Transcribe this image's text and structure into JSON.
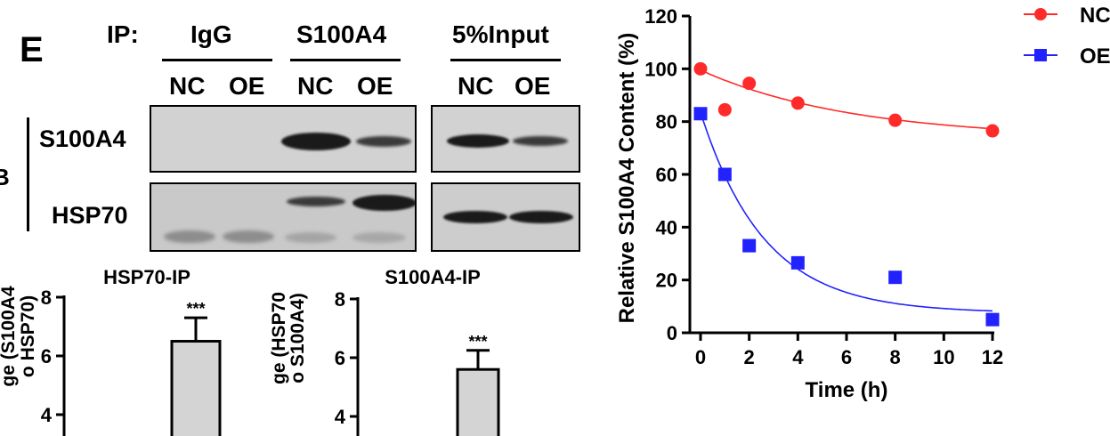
{
  "panel_label": "E",
  "ip": {
    "prefix": "IP:",
    "groups": [
      "IgG",
      "S100A4",
      "5%Input"
    ],
    "lanes": [
      "NC",
      "OE",
      "NC",
      "OE",
      "NC",
      "OE"
    ]
  },
  "blot": {
    "side_label": "B",
    "rows": [
      "S100A4",
      "HSP70"
    ]
  },
  "bar_charts": [
    {
      "title": "HSP70-IP",
      "ylabel_line1": "ge (S100A4",
      "ylabel_line2": "o HSP70)",
      "yticks": [
        8,
        6,
        4
      ],
      "ylim": [
        4,
        8
      ],
      "value": 6.5,
      "error": 0.8,
      "significance": "***"
    },
    {
      "title": "S100A4-IP",
      "ylabel_line1": "ge (HSP70",
      "ylabel_line2": "o S100A4)",
      "yticks": [
        8,
        6,
        4
      ],
      "ylim": [
        4,
        8
      ],
      "value": 5.6,
      "error": 0.65,
      "significance": "***"
    }
  ],
  "chart_data": {
    "type": "scatter",
    "title": "",
    "xlabel": "Time (h)",
    "ylabel": "Relative S100A4 Content (%)",
    "xlim": [
      0,
      12
    ],
    "ylim": [
      0,
      120
    ],
    "xticks": [
      0,
      2,
      4,
      6,
      8,
      10,
      12
    ],
    "yticks": [
      0,
      20,
      40,
      60,
      80,
      100,
      120
    ],
    "legend_position": "top-right",
    "x": [
      0,
      1,
      2,
      4,
      8,
      12
    ],
    "series": [
      {
        "name": "NC",
        "color": "#ff2a2a",
        "marker": "circle",
        "values": [
          100,
          84.5,
          94.5,
          87,
          80.5,
          76.5
        ],
        "fit": {
          "a": 26,
          "k": 0.16,
          "c": 73.5
        }
      },
      {
        "name": "OE",
        "color": "#2222ff",
        "marker": "square",
        "values": [
          83,
          60,
          33,
          26.5,
          21,
          5
        ],
        "fit": {
          "a": 76,
          "k": 0.38,
          "c": 7.5
        }
      }
    ]
  }
}
